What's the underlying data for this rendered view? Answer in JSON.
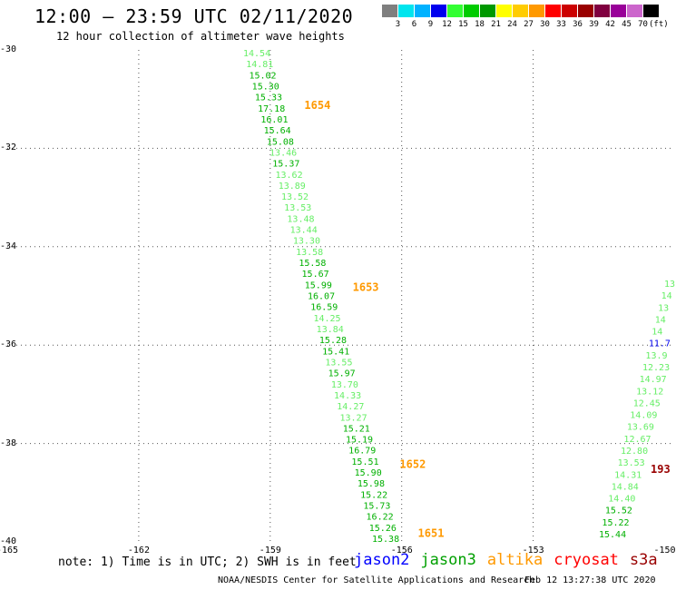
{
  "header": {
    "title": "12:00 – 23:59 UTC 02/11/2020",
    "subtitle": "12 hour collection of altimeter wave heights"
  },
  "color_scale": {
    "unit": "(ft)",
    "bins": [
      {
        "label": "",
        "color": "#7f7f7f"
      },
      {
        "label": "3",
        "color": "#00e5ee"
      },
      {
        "label": "6",
        "color": "#00b2ff"
      },
      {
        "label": "9",
        "color": "#0000ee"
      },
      {
        "label": "12",
        "color": "#33ff33"
      },
      {
        "label": "15",
        "color": "#00cc00"
      },
      {
        "label": "18",
        "color": "#009900"
      },
      {
        "label": "21",
        "color": "#ffff00"
      },
      {
        "label": "24",
        "color": "#ffcc00"
      },
      {
        "label": "27",
        "color": "#ff9900"
      },
      {
        "label": "30",
        "color": "#ff0000"
      },
      {
        "label": "33",
        "color": "#cc0000"
      },
      {
        "label": "36",
        "color": "#990000"
      },
      {
        "label": "39",
        "color": "#800040"
      },
      {
        "label": "42",
        "color": "#990099"
      },
      {
        "label": "45",
        "color": "#cc66cc"
      },
      {
        "label": "70",
        "color": "#000000"
      }
    ]
  },
  "axes": {
    "lat_labels": [
      "-30",
      "-32",
      "-34",
      "-36",
      "-38",
      "-40"
    ],
    "lon_labels": [
      "-165",
      "-162",
      "-159",
      "-156",
      "-153",
      "-150"
    ]
  },
  "track_a": {
    "wave_heights": [
      "14.54",
      "14.81",
      "15.02",
      "15.30",
      "15.33",
      "17.18",
      "16.01",
      "15.64",
      "15.08",
      "13.46",
      "15.37",
      "13.62",
      "13.89",
      "13.52",
      "13.53",
      "13.48",
      "13.44",
      "13.30",
      "13.58",
      "15.58",
      "15.67",
      "15.99",
      "16.07",
      "16.59",
      "14.25",
      "13.84",
      "15.28",
      "15.41",
      "13.55",
      "15.97",
      "13.70",
      "14.33",
      "14.27",
      "13.27",
      "15.21",
      "15.19",
      "16.79",
      "15.51",
      "15.90",
      "15.98",
      "15.22",
      "15.73",
      "16.22",
      "15.26",
      "15.38"
    ],
    "time_labels": [
      {
        "text": "1654",
        "lat": -31.2
      },
      {
        "text": "1653",
        "lat": -34.9
      },
      {
        "text": "1652",
        "lat": -38.5
      },
      {
        "text": "1651",
        "lat": -39.9
      }
    ]
  },
  "track_b": {
    "wave_heights": [
      "13",
      "14",
      "13",
      "14",
      "14",
      "11.7",
      "13.9",
      "12.23",
      "14.97",
      "13.12",
      "12.45",
      "14.09",
      "13.69",
      "12.67",
      "12.80",
      "13.53",
      "14.31",
      "14.84",
      "14.40",
      "15.52",
      "15.22",
      "15.44"
    ],
    "time_label": {
      "text": "193",
      "lat": -38.6
    }
  },
  "footer": {
    "note": "note: 1) Time is in UTC; 2) SWH is in feet",
    "satellites": [
      {
        "name": "jason2",
        "color": "#0000ff"
      },
      {
        "name": "jason3",
        "color": "#00a000"
      },
      {
        "name": "altika",
        "color": "#ff9900"
      },
      {
        "name": "cryosat",
        "color": "#ff0000"
      },
      {
        "name": "s3a",
        "color": "#990000"
      }
    ],
    "credit": "NOAA/NESDIS Center for Satellite Applications and Research",
    "timestamp": "Feb 12 13:27:38 UTC 2020"
  }
}
